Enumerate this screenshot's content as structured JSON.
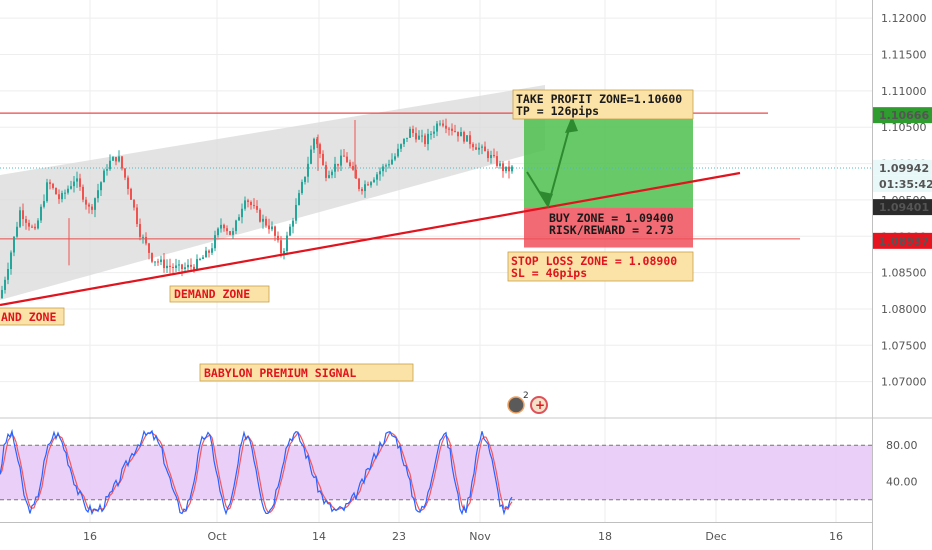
{
  "chart_data": {
    "type": "candlestick",
    "price_axis": {
      "ylim": [
        1.065,
        1.1225
      ],
      "ticks": [
        "1.12000",
        "1.11500",
        "1.11000",
        "1.10500",
        "1.10000",
        "1.09500",
        "1.09000",
        "1.08500",
        "1.08000",
        "1.07500",
        "1.07000"
      ]
    },
    "time_axis": {
      "ticks": [
        "16",
        "Oct",
        "14",
        "23",
        "Nov",
        "18",
        "Dec",
        "16"
      ]
    },
    "price_labels": [
      {
        "text": "1.10666",
        "value": 1.10666,
        "color": "#2e9c2e"
      },
      {
        "text": "1.09942",
        "value": 1.09942,
        "color": "#e8f7f8"
      },
      {
        "text": "01:35:42",
        "value": 1.0972,
        "color": "#e8f7f8"
      },
      {
        "text": "1.09401",
        "value": 1.09401,
        "color": "#2b2b2b"
      },
      {
        "text": "1.08937",
        "value": 1.08937,
        "color": "#e6141e"
      }
    ],
    "horizontal_lines": [
      {
        "value": 1.10666,
        "color": "#e84a4a"
      },
      {
        "value": 1.08937,
        "color": "#e84a4a"
      }
    ],
    "trade_zones": {
      "entry": 1.094,
      "take_profit": 1.106,
      "stop_loss": 1.089,
      "profit_color": "#4cbf4c",
      "loss_color": "#f0505a"
    },
    "annotations": {
      "take_profit": [
        "TAKE PROFIT ZONE=1.10600",
        "TP = 126pips"
      ],
      "buy": [
        "BUY ZONE = 1.09400",
        "RISK/REWARD = 2.73"
      ],
      "stop_loss": [
        "STOP LOSS ZONE = 1.08900",
        "SL = 46pips"
      ],
      "demand_1": "DEMAND ZONE",
      "demand_2": "AND ZONE",
      "signal": "BABYLON PREMIUM SIGNAL"
    },
    "oscillator": {
      "type": "stochastic",
      "ylim": [
        0,
        100
      ],
      "levels": [
        80,
        20
      ],
      "ticks": [
        "80.00",
        "40.00"
      ],
      "k_color": "#2962ff",
      "d_color": "#f5565c",
      "band_color": "#e6c8f8"
    },
    "grid": true
  },
  "badge": {
    "count": "2"
  }
}
